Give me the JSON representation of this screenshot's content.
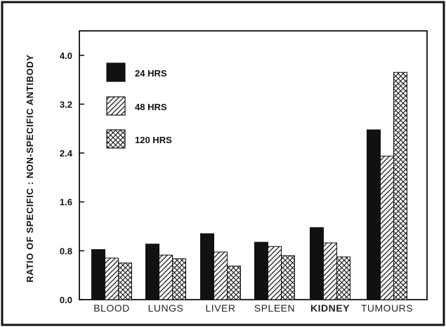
{
  "chart_data": {
    "type": "bar",
    "title": "",
    "xlabel": "",
    "ylabel": "RATIO OF SPECIFIC : NON-SPECIFIC ANTIBODY",
    "categories": [
      "BLOOD",
      "LUNGS",
      "LIVER",
      "SPLEEN",
      "KIDNEY",
      "TUMOURS"
    ],
    "series": [
      {
        "name": "24 HRS",
        "pattern": "solid",
        "values": [
          0.82,
          0.91,
          1.08,
          0.94,
          1.18,
          2.78
        ]
      },
      {
        "name": "48 HRS",
        "pattern": "hatch",
        "values": [
          0.68,
          0.73,
          0.78,
          0.87,
          0.93,
          2.35
        ]
      },
      {
        "name": "120 HRS",
        "pattern": "crosshatch",
        "values": [
          0.6,
          0.67,
          0.55,
          0.72,
          0.7,
          3.72
        ]
      }
    ],
    "yticks": [
      "0.0",
      "0.8",
      "1.6",
      "2.4",
      "3.2",
      "4.0"
    ],
    "ylim": [
      0,
      4.4
    ],
    "grid": false,
    "legend": "top-left",
    "colors": {
      "bar_fill": "#111111",
      "pattern_bg": "#ffffff",
      "stroke": "#111111"
    }
  }
}
